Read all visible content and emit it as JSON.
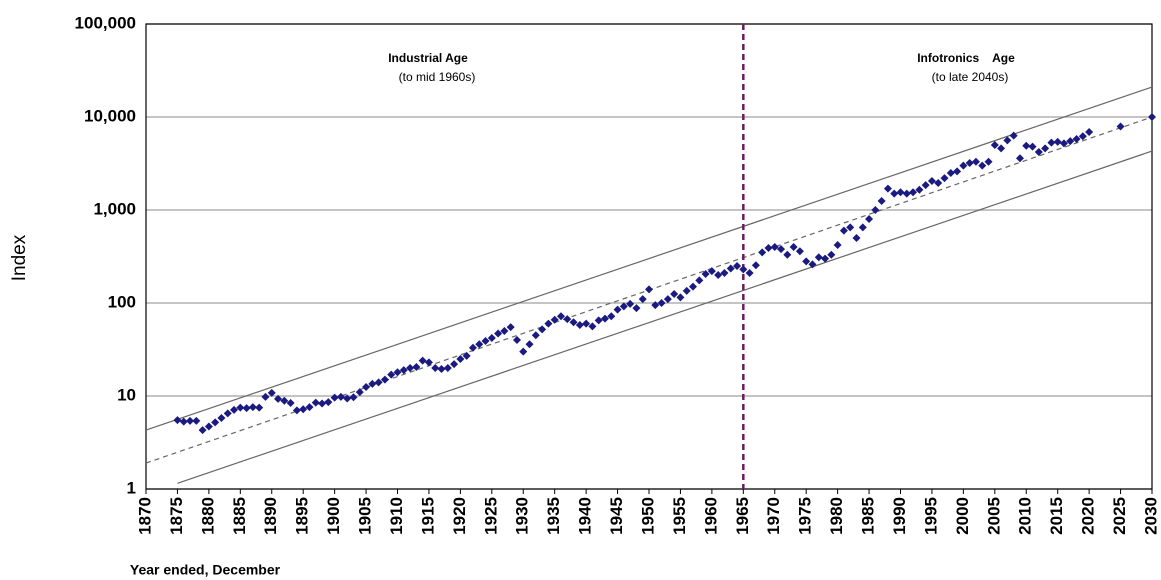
{
  "chart_data": {
    "type": "scatter",
    "y_label": "Index",
    "x_label": "Year ended, December",
    "annotations": [
      "Industrial Age",
      "(to mid 1960s)",
      "Infotronics    Age",
      "(to late 2040s)"
    ],
    "log_y": true,
    "grid": true,
    "xlim": [
      1870,
      2030
    ],
    "ylim": [
      1,
      100000
    ],
    "xticks": [
      1870,
      1875,
      1880,
      1885,
      1890,
      1895,
      1900,
      1905,
      1910,
      1915,
      1920,
      1925,
      1930,
      1935,
      1940,
      1945,
      1950,
      1955,
      1960,
      1965,
      1970,
      1975,
      1980,
      1985,
      1990,
      1995,
      2000,
      2005,
      2010,
      2015,
      2020,
      2025,
      2030
    ],
    "yticks": [
      1,
      10,
      100,
      {
        "value": 1000,
        "label": "1,000"
      },
      {
        "value": 10000,
        "label": "10,000"
      },
      {
        "value": 100000,
        "label": "100,000"
      }
    ],
    "divider_x": 1965,
    "divider_color": "#6b1a5e",
    "x": [
      1875,
      1876,
      1877,
      1878,
      1879,
      1880,
      1881,
      1882,
      1883,
      1884,
      1885,
      1886,
      1887,
      1888,
      1889,
      1890,
      1891,
      1892,
      1893,
      1894,
      1895,
      1896,
      1897,
      1898,
      1899,
      1900,
      1901,
      1902,
      1903,
      1904,
      1905,
      1906,
      1907,
      1908,
      1909,
      1910,
      1911,
      1912,
      1913,
      1914,
      1915,
      1916,
      1917,
      1918,
      1919,
      1920,
      1921,
      1922,
      1923,
      1924,
      1925,
      1926,
      1927,
      1928,
      1929,
      1930,
      1931,
      1932,
      1933,
      1934,
      1935,
      1936,
      1937,
      1938,
      1939,
      1940,
      1941,
      1942,
      1943,
      1944,
      1945,
      1946,
      1947,
      1948,
      1949,
      1950,
      1951,
      1952,
      1953,
      1954,
      1955,
      1956,
      1957,
      1958,
      1959,
      1960,
      1961,
      1962,
      1963,
      1964,
      1965,
      1966,
      1967,
      1968,
      1969,
      1970,
      1971,
      1972,
      1973,
      1974,
      1975,
      1976,
      1977,
      1978,
      1979,
      1980,
      1981,
      1982,
      1983,
      1984,
      1985,
      1986,
      1987,
      1988,
      1989,
      1990,
      1991,
      1992,
      1993,
      1994,
      1995,
      1996,
      1997,
      1998,
      1999,
      2000,
      2001,
      2002,
      2003,
      2004,
      2005,
      2006,
      2007,
      2008,
      2009,
      2010,
      2011,
      2012,
      2013,
      2014,
      2015,
      2016,
      2017,
      2018,
      2019,
      2020,
      2025,
      2030
    ],
    "series": [
      {
        "color": "#1a1a80",
        "values": [
          5.5,
          5.3,
          5.4,
          5.4,
          4.3,
          4.7,
          5.2,
          5.8,
          6.5,
          7.1,
          7.5,
          7.4,
          7.6,
          7.5,
          9.8,
          10.8,
          9.3,
          8.9,
          8.4,
          7.0,
          7.2,
          7.6,
          8.5,
          8.3,
          8.6,
          9.6,
          9.8,
          9.4,
          9.7,
          11,
          12.5,
          13.5,
          14,
          15,
          17,
          18,
          19,
          20,
          20.5,
          24,
          23,
          20,
          19.5,
          20,
          22,
          25,
          27,
          33,
          36,
          39,
          42,
          47,
          50,
          55,
          40,
          30,
          36,
          45,
          52,
          60,
          66,
          72,
          67,
          62,
          58,
          60,
          56,
          65,
          68,
          72,
          85,
          92,
          98,
          88,
          110,
          140,
          95,
          100,
          110,
          125,
          115,
          135,
          150,
          175,
          205,
          220,
          200,
          210,
          235,
          250,
          230,
          210,
          255,
          350,
          390,
          400,
          380,
          330,
          400,
          360,
          280,
          260,
          310,
          300,
          330,
          420,
          600,
          650,
          500,
          650,
          800,
          1000,
          1250,
          1700,
          1500,
          1550,
          1500,
          1550,
          1650,
          1850,
          2050,
          1950,
          2200,
          2500,
          2600,
          3000,
          3200,
          3300,
          3000,
          3300,
          5000,
          4600,
          5600,
          6300,
          3600,
          4900,
          4800,
          4200,
          4600,
          5300,
          5400,
          5200,
          5500,
          5800,
          6200,
          6900,
          7900,
          10000
        ]
      }
    ],
    "trend_lines": [
      {
        "x": [
          1870,
          2030
        ],
        "values": [
          4.3,
          21000
        ],
        "color": "#666666",
        "dashed": false
      },
      {
        "x": [
          1870,
          2030
        ],
        "values": [
          1.9,
          10000
        ],
        "color": "#666666",
        "dashed": true
      },
      {
        "x": [
          1875,
          2030
        ],
        "values": [
          1.15,
          4300
        ],
        "color": "#666666",
        "dashed": false
      }
    ]
  }
}
